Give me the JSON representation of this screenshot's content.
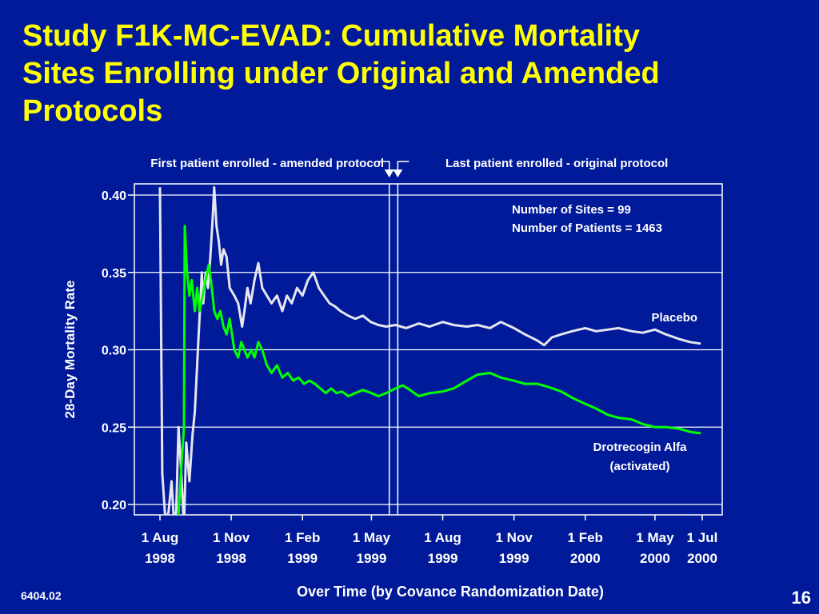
{
  "slide": {
    "title_lines": [
      "Study F1K-MC-EVAD: Cumulative Mortality",
      "Sites Enrolling under Original and Amended",
      "Protocols"
    ],
    "footer_code": "6404.02",
    "page_number": "16"
  },
  "colors": {
    "background": "#001a99",
    "title": "#ffff00",
    "placebo": "#e6e6f0",
    "drotrecogin": "#00ff00",
    "axes": "#ffffff"
  },
  "chart_data": {
    "type": "line",
    "ylabel": "28-Day Mortality Rate",
    "xlabel": "Over Time (by Covance Randomization Date)",
    "ylim": [
      0.195,
      0.405
    ],
    "xlim": [
      "1998-08-01",
      "2000-07-01"
    ],
    "grid": false,
    "y_ticks": [
      "0.40",
      "0.35",
      "0.30",
      "0.25",
      "0.20"
    ],
    "x_ticks": [
      {
        "date": "1998-08-01",
        "line1": "1 Aug",
        "line2": "1998"
      },
      {
        "date": "1998-11-01",
        "line1": "1 Nov",
        "line2": "1998"
      },
      {
        "date": "1999-02-01",
        "line1": "1 Feb",
        "line2": "1999"
      },
      {
        "date": "1999-05-01",
        "line1": "1 May",
        "line2": "1999"
      },
      {
        "date": "1999-08-01",
        "line1": "1 Aug",
        "line2": "1999"
      },
      {
        "date": "1999-11-01",
        "line1": "1 Nov",
        "line2": "1999"
      },
      {
        "date": "2000-02-01",
        "line1": "1 Feb",
        "line2": "2000"
      },
      {
        "date": "2000-05-01",
        "line1": "1 May",
        "line2": "2000"
      },
      {
        "date": "2000-07-01",
        "line1": "1 Jul",
        "line2": "2000"
      }
    ],
    "annotations": {
      "stats_line1": "Number of Sites = 99",
      "stats_line2": "Number of Patients = 1463"
    },
    "reference_lines": [
      {
        "label": "First patient enrolled - amended protocol",
        "date": "1999-05-24"
      },
      {
        "label": "Last patient enrolled - original protocol",
        "date": "1999-06-04"
      }
    ],
    "series": [
      {
        "name": "Placebo",
        "points": [
          [
            "1998-08-01",
            0.405
          ],
          [
            "1998-08-04",
            0.22
          ],
          [
            "1998-08-08",
            0.19
          ],
          [
            "1998-08-12",
            0.195
          ],
          [
            "1998-08-16",
            0.215
          ],
          [
            "1998-08-19",
            0.19
          ],
          [
            "1998-08-22",
            0.195
          ],
          [
            "1998-08-25",
            0.25
          ],
          [
            "1998-08-28",
            0.225
          ],
          [
            "1998-09-01",
            0.185
          ],
          [
            "1998-09-04",
            0.24
          ],
          [
            "1998-09-08",
            0.215
          ],
          [
            "1998-09-12",
            0.245
          ],
          [
            "1998-09-15",
            0.26
          ],
          [
            "1998-09-18",
            0.29
          ],
          [
            "1998-09-20",
            0.31
          ],
          [
            "1998-09-22",
            0.33
          ],
          [
            "1998-09-24",
            0.35
          ],
          [
            "1998-09-26",
            0.33
          ],
          [
            "1998-09-29",
            0.35
          ],
          [
            "1998-10-02",
            0.34
          ],
          [
            "1998-10-05",
            0.36
          ],
          [
            "1998-10-08",
            0.385
          ],
          [
            "1998-10-10",
            0.405
          ],
          [
            "1998-10-13",
            0.38
          ],
          [
            "1998-10-16",
            0.37
          ],
          [
            "1998-10-19",
            0.355
          ],
          [
            "1998-10-22",
            0.365
          ],
          [
            "1998-10-26",
            0.36
          ],
          [
            "1998-10-30",
            0.34
          ],
          [
            "1998-11-05",
            0.335
          ],
          [
            "1998-11-10",
            0.33
          ],
          [
            "1998-11-15",
            0.315
          ],
          [
            "1998-11-18",
            0.325
          ],
          [
            "1998-11-22",
            0.34
          ],
          [
            "1998-11-26",
            0.33
          ],
          [
            "1998-12-01",
            0.345
          ],
          [
            "1998-12-06",
            0.356
          ],
          [
            "1998-12-11",
            0.34
          ],
          [
            "1998-12-17",
            0.335
          ],
          [
            "1998-12-23",
            0.33
          ],
          [
            "1998-12-30",
            0.335
          ],
          [
            "1999-01-06",
            0.325
          ],
          [
            "1999-01-12",
            0.335
          ],
          [
            "1999-01-18",
            0.33
          ],
          [
            "1999-01-25",
            0.34
          ],
          [
            "1999-02-01",
            0.335
          ],
          [
            "1999-02-08",
            0.345
          ],
          [
            "1999-02-15",
            0.35
          ],
          [
            "1999-02-22",
            0.34
          ],
          [
            "1999-03-01",
            0.335
          ],
          [
            "1999-03-08",
            0.33
          ],
          [
            "1999-03-15",
            0.328
          ],
          [
            "1999-03-22",
            0.325
          ],
          [
            "1999-04-01",
            0.322
          ],
          [
            "1999-04-10",
            0.32
          ],
          [
            "1999-04-20",
            0.322
          ],
          [
            "1999-04-30",
            0.318
          ],
          [
            "1999-05-10",
            0.316
          ],
          [
            "1999-05-20",
            0.315
          ],
          [
            "1999-06-01",
            0.316
          ],
          [
            "1999-06-15",
            0.314
          ],
          [
            "1999-07-01",
            0.317
          ],
          [
            "1999-07-15",
            0.315
          ],
          [
            "1999-08-01",
            0.318
          ],
          [
            "1999-08-15",
            0.316
          ],
          [
            "1999-09-01",
            0.315
          ],
          [
            "1999-09-15",
            0.316
          ],
          [
            "1999-10-01",
            0.314
          ],
          [
            "1999-10-15",
            0.318
          ],
          [
            "1999-11-01",
            0.314
          ],
          [
            "1999-11-15",
            0.31
          ],
          [
            "1999-12-01",
            0.306
          ],
          [
            "1999-12-10",
            0.303
          ],
          [
            "1999-12-20",
            0.308
          ],
          [
            "2000-01-01",
            0.31
          ],
          [
            "2000-01-15",
            0.312
          ],
          [
            "2000-02-01",
            0.314
          ],
          [
            "2000-02-15",
            0.312
          ],
          [
            "2000-03-01",
            0.313
          ],
          [
            "2000-03-15",
            0.314
          ],
          [
            "2000-04-01",
            0.312
          ],
          [
            "2000-04-15",
            0.311
          ],
          [
            "2000-05-01",
            0.313
          ],
          [
            "2000-05-15",
            0.31
          ],
          [
            "2000-06-01",
            0.307
          ],
          [
            "2000-06-15",
            0.305
          ],
          [
            "2000-06-29",
            0.304
          ]
        ]
      },
      {
        "name": "Drotrecogin Alfa",
        "name_line2": "(activated)",
        "points": [
          [
            "1998-08-24",
            0.185
          ],
          [
            "1998-08-28",
            0.22
          ],
          [
            "1998-09-01",
            0.25
          ],
          [
            "1998-09-02",
            0.38
          ],
          [
            "1998-09-05",
            0.35
          ],
          [
            "1998-09-08",
            0.335
          ],
          [
            "1998-09-11",
            0.345
          ],
          [
            "1998-09-15",
            0.325
          ],
          [
            "1998-09-18",
            0.34
          ],
          [
            "1998-09-21",
            0.325
          ],
          [
            "1998-09-25",
            0.335
          ],
          [
            "1998-09-29",
            0.345
          ],
          [
            "1998-10-03",
            0.355
          ],
          [
            "1998-10-07",
            0.34
          ],
          [
            "1998-10-10",
            0.325
          ],
          [
            "1998-10-14",
            0.32
          ],
          [
            "1998-10-18",
            0.325
          ],
          [
            "1998-10-22",
            0.315
          ],
          [
            "1998-10-26",
            0.31
          ],
          [
            "1998-10-30",
            0.32
          ],
          [
            "1998-11-05",
            0.3
          ],
          [
            "1998-11-10",
            0.295
          ],
          [
            "1998-11-14",
            0.305
          ],
          [
            "1998-11-18",
            0.3
          ],
          [
            "1998-11-22",
            0.295
          ],
          [
            "1998-11-27",
            0.3
          ],
          [
            "1998-12-01",
            0.295
          ],
          [
            "1998-12-06",
            0.305
          ],
          [
            "1998-12-11",
            0.3
          ],
          [
            "1998-12-17",
            0.29
          ],
          [
            "1998-12-23",
            0.285
          ],
          [
            "1998-12-30",
            0.29
          ],
          [
            "1999-01-06",
            0.282
          ],
          [
            "1999-01-13",
            0.285
          ],
          [
            "1999-01-20",
            0.28
          ],
          [
            "1999-01-27",
            0.282
          ],
          [
            "1999-02-03",
            0.278
          ],
          [
            "1999-02-10",
            0.28
          ],
          [
            "1999-02-17",
            0.278
          ],
          [
            "1999-02-24",
            0.275
          ],
          [
            "1999-03-03",
            0.272
          ],
          [
            "1999-03-10",
            0.275
          ],
          [
            "1999-03-17",
            0.272
          ],
          [
            "1999-03-24",
            0.273
          ],
          [
            "1999-04-01",
            0.27
          ],
          [
            "1999-04-10",
            0.272
          ],
          [
            "1999-04-20",
            0.274
          ],
          [
            "1999-05-01",
            0.272
          ],
          [
            "1999-05-10",
            0.27
          ],
          [
            "1999-05-20",
            0.272
          ],
          [
            "1999-06-01",
            0.275
          ],
          [
            "1999-06-10",
            0.277
          ],
          [
            "1999-06-20",
            0.274
          ],
          [
            "1999-07-01",
            0.27
          ],
          [
            "1999-07-15",
            0.272
          ],
          [
            "1999-08-01",
            0.273
          ],
          [
            "1999-08-15",
            0.275
          ],
          [
            "1999-09-01",
            0.28
          ],
          [
            "1999-09-15",
            0.284
          ],
          [
            "1999-10-01",
            0.285
          ],
          [
            "1999-10-15",
            0.282
          ],
          [
            "1999-11-01",
            0.28
          ],
          [
            "1999-11-15",
            0.278
          ],
          [
            "1999-12-01",
            0.278
          ],
          [
            "1999-12-15",
            0.276
          ],
          [
            "2000-01-01",
            0.273
          ],
          [
            "2000-01-15",
            0.269
          ],
          [
            "2000-02-01",
            0.265
          ],
          [
            "2000-02-15",
            0.262
          ],
          [
            "2000-03-01",
            0.258
          ],
          [
            "2000-03-15",
            0.256
          ],
          [
            "2000-04-01",
            0.255
          ],
          [
            "2000-04-15",
            0.252
          ],
          [
            "2000-05-01",
            0.25
          ],
          [
            "2000-05-15",
            0.25
          ],
          [
            "2000-06-01",
            0.249
          ],
          [
            "2000-06-15",
            0.247
          ],
          [
            "2000-06-29",
            0.246
          ]
        ]
      }
    ]
  }
}
